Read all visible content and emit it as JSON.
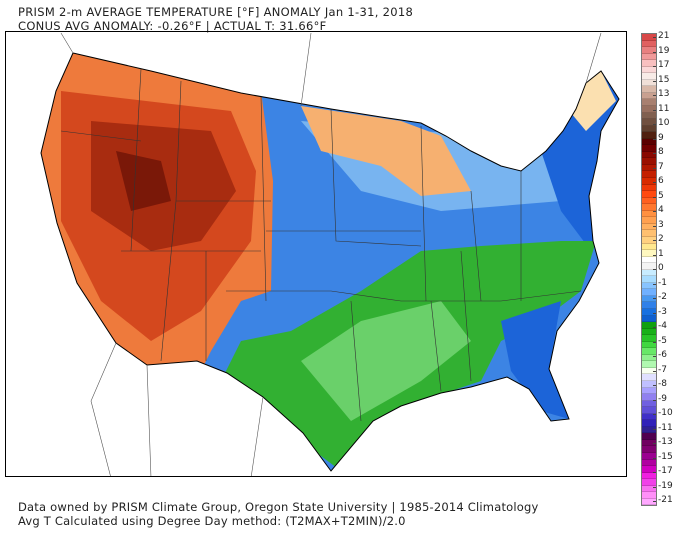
{
  "header": {
    "line1": "PRISM 2-m AVERAGE TEMPERATURE [°F] ANOMALY Jan 1-31, 2018",
    "line2": "CONUS AVG ANOMALY: -0.26°F | ACTUAL T: 31.66°F"
  },
  "footer": {
    "line1": "Data owned by PRISM Climate Group, Oregon State University | 1985-2014 Climatology",
    "line2": "Avg T Calculated using Degree Day method: (T2MAX+T2MIN)/2.0"
  },
  "legend": {
    "labels": [
      "21",
      "19",
      "17",
      "15",
      "13",
      "11",
      "10",
      "9",
      "8",
      "7",
      "6",
      "5",
      "4",
      "3",
      "2",
      "1",
      "0",
      "-1",
      "-2",
      "-3",
      "-4",
      "-5",
      "-6",
      "-7",
      "-8",
      "-9",
      "-10",
      "-11",
      "-13",
      "-15",
      "-17",
      "-19",
      "-21"
    ],
    "colors": [
      "#d84848",
      "#e06060",
      "#e88080",
      "#f09a9a",
      "#f8c0c0",
      "#fad8d8",
      "#f8ece8",
      "#f0e0d8",
      "#d8b8a8",
      "#c8a090",
      "#a88070",
      "#987060",
      "#806050",
      "#705040",
      "#604030",
      "#502010",
      "#5a0000",
      "#700000",
      "#880800",
      "#9a1000",
      "#b01800",
      "#c42000",
      "#d82a00",
      "#ee3808",
      "#ff4a10",
      "#ff6020",
      "#ff7830",
      "#ff9040",
      "#ffa050",
      "#ffb060",
      "#ffc070",
      "#ffd080",
      "#ffe890",
      "#fff8c0",
      "#ffffff",
      "#f4f4f4",
      "#c8ecff",
      "#a8dcff",
      "#88c4ff",
      "#70b0ff",
      "#4898f0",
      "#3080e8",
      "#1870e0",
      "#1060d0",
      "#10a010",
      "#18b018",
      "#28c428",
      "#40d840",
      "#68e868",
      "#90f090",
      "#b0f8b0",
      "#f8fff0",
      "#e0e0ff",
      "#c0c0ff",
      "#a8a0ff",
      "#9080f0",
      "#7060e0",
      "#6050d8",
      "#4030c8",
      "#3020b8",
      "#302090",
      "#500050",
      "#700060",
      "#800070",
      "#9a0090",
      "#b000a0",
      "#d000c0",
      "#f020e0",
      "#f040e8",
      "#f870f0",
      "#ff90f8",
      "#ffa8ff"
    ],
    "map_colors": {
      "darkest_red": "#7a1808",
      "dark_red": "#a82c10",
      "red": "#d4481e",
      "orange": "#ee7a3c",
      "light_orange": "#f6b070",
      "pale": "#fbe0b0",
      "blue": "#3c84e4",
      "light_blue": "#78b4f0",
      "dark_blue": "#1c64d8",
      "green": "#32b032",
      "light_green": "#6ad06a"
    }
  }
}
